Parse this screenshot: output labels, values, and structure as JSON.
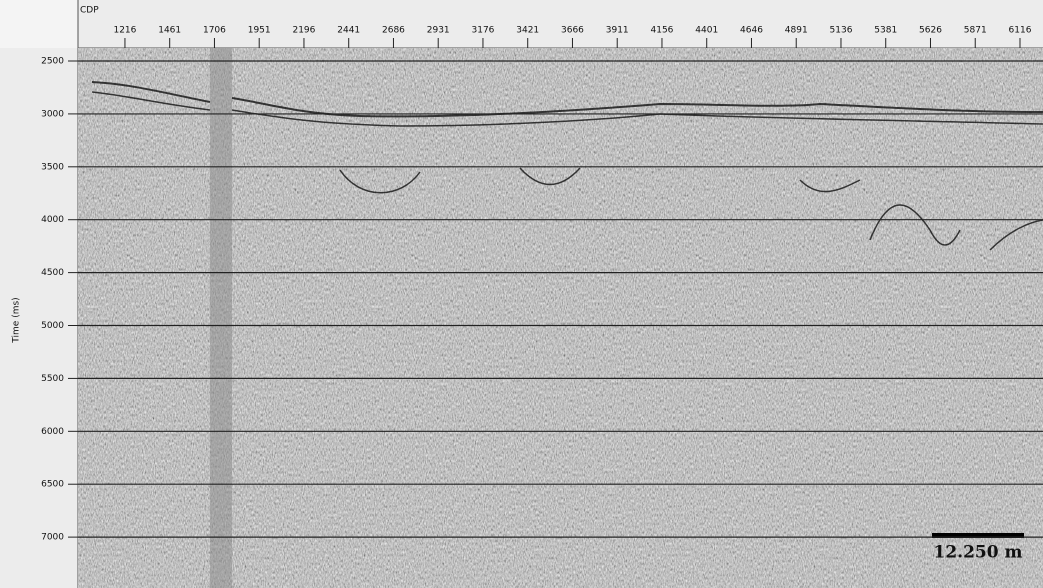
{
  "chart_data": {
    "type": "seismic",
    "x_label": "CDP",
    "y_label": "Time (ms)",
    "xlim": [
      959,
      6242
    ],
    "ylim": [
      2377,
      7481
    ],
    "xticks": [
      1216,
      1461,
      1706,
      1951,
      2196,
      2441,
      2686,
      2931,
      3176,
      3421,
      3666,
      3911,
      4156,
      4401,
      4646,
      4891,
      5136,
      5381,
      5626,
      5871,
      6116
    ],
    "yticks": [
      2500,
      3000,
      3500,
      4000,
      4500,
      5000,
      5500,
      6000,
      6500,
      7000
    ],
    "grid": true,
    "annotations": [
      "12.250 m"
    ]
  }
}
